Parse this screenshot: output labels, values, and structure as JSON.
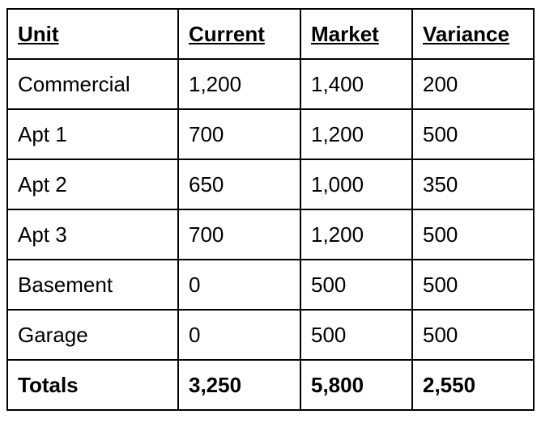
{
  "table": {
    "headers": [
      "Unit",
      "Current",
      "Market",
      "Variance"
    ],
    "rows": [
      [
        "Commercial",
        "1,200",
        "1,400",
        "200"
      ],
      [
        "Apt 1",
        "700",
        "1,200",
        "500"
      ],
      [
        "Apt 2",
        "650",
        "1,000",
        "350"
      ],
      [
        "Apt 3",
        "700",
        "1,200",
        "500"
      ],
      [
        "Basement",
        "0",
        "500",
        "500"
      ],
      [
        "Garage",
        "0",
        "500",
        "500"
      ]
    ],
    "totals": [
      "Totals",
      "3,250",
      "5,800",
      "2,550"
    ]
  }
}
